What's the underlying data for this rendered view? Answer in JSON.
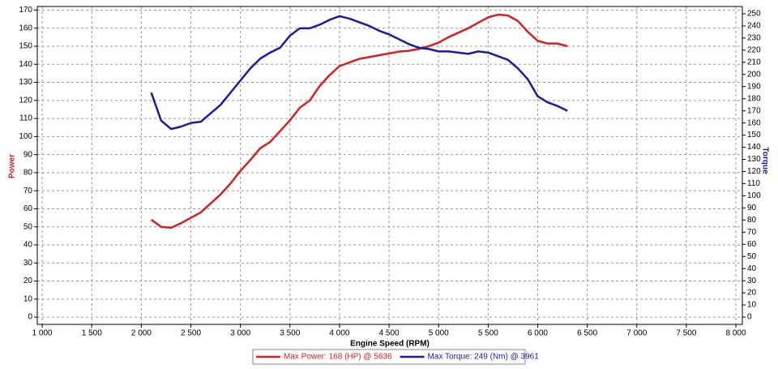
{
  "chart_data": {
    "type": "line",
    "x_label": "Engine Speed (RPM)",
    "y_label": "Power",
    "y2_label": "Torque",
    "xlim": [
      950,
      8065
    ],
    "xticks": [
      {
        "value": 1000,
        "label": "1 000"
      },
      {
        "value": 1500,
        "label": "1 500"
      },
      {
        "value": 2000,
        "label": "2 000"
      },
      {
        "value": 2500,
        "label": "2 500"
      },
      {
        "value": 3000,
        "label": "3 000"
      },
      {
        "value": 3500,
        "label": "3 500"
      },
      {
        "value": 4000,
        "label": "4 000"
      },
      {
        "value": 4500,
        "label": "4 500"
      },
      {
        "value": 5000,
        "label": "5 000"
      },
      {
        "value": 5500,
        "label": "5 500"
      },
      {
        "value": 6000,
        "label": "6 000"
      },
      {
        "value": 6500,
        "label": "6 500"
      },
      {
        "value": 7000,
        "label": "7 000"
      },
      {
        "value": 7500,
        "label": "7 500"
      },
      {
        "value": 8000,
        "label": "8 000"
      }
    ],
    "ylim": [
      -4,
      172
    ],
    "yticks": [
      0,
      10,
      20,
      30,
      40,
      50,
      60,
      70,
      80,
      90,
      100,
      110,
      120,
      130,
      140,
      150,
      160,
      170
    ],
    "y2lim": [
      -6,
      256
    ],
    "y2ticks": [
      0,
      10,
      20,
      30,
      40,
      50,
      60,
      70,
      80,
      90,
      100,
      110,
      120,
      130,
      140,
      150,
      160,
      170,
      180,
      190,
      200,
      210,
      220,
      230,
      240,
      250
    ],
    "grid": true,
    "legend": "bottom",
    "x": [
      2100,
      2200,
      2300,
      2400,
      2500,
      2600,
      2700,
      2800,
      2900,
      3000,
      3100,
      3200,
      3300,
      3400,
      3500,
      3600,
      3700,
      3800,
      3900,
      4000,
      4100,
      4200,
      4300,
      4400,
      4500,
      4600,
      4700,
      4800,
      4900,
      5000,
      5100,
      5200,
      5300,
      5400,
      5500,
      5600,
      5700,
      5800,
      5900,
      6000,
      6100,
      6200,
      6300
    ],
    "series": [
      {
        "name": "Max Power: 168 (HP) @ 5636",
        "color": "#d42020",
        "values": [
          54,
          50,
          49.5,
          52,
          55,
          58,
          63,
          68,
          74,
          81,
          87,
          93.5,
          97,
          103,
          109,
          116,
          120,
          128,
          134,
          139,
          141,
          143,
          144,
          145,
          146,
          147,
          147.5,
          148.5,
          150,
          152,
          155,
          157.5,
          160,
          163,
          166,
          167.5,
          167,
          164,
          158,
          153,
          151.5,
          151.5,
          150
        ]
      },
      {
        "name": "Max Torque: 249 (Nm) @ 3961",
        "color": "#1a1aa8",
        "axis": "y2",
        "values": [
          185,
          162,
          155,
          157,
          160,
          161,
          168,
          175,
          185,
          195,
          205,
          213,
          218,
          222,
          232,
          238,
          238,
          241,
          245,
          248,
          246,
          243,
          240,
          236,
          233,
          229,
          225,
          222,
          221,
          219,
          219,
          218,
          217,
          219,
          218,
          215,
          212,
          205,
          196,
          182,
          177,
          174,
          170
        ]
      }
    ]
  }
}
